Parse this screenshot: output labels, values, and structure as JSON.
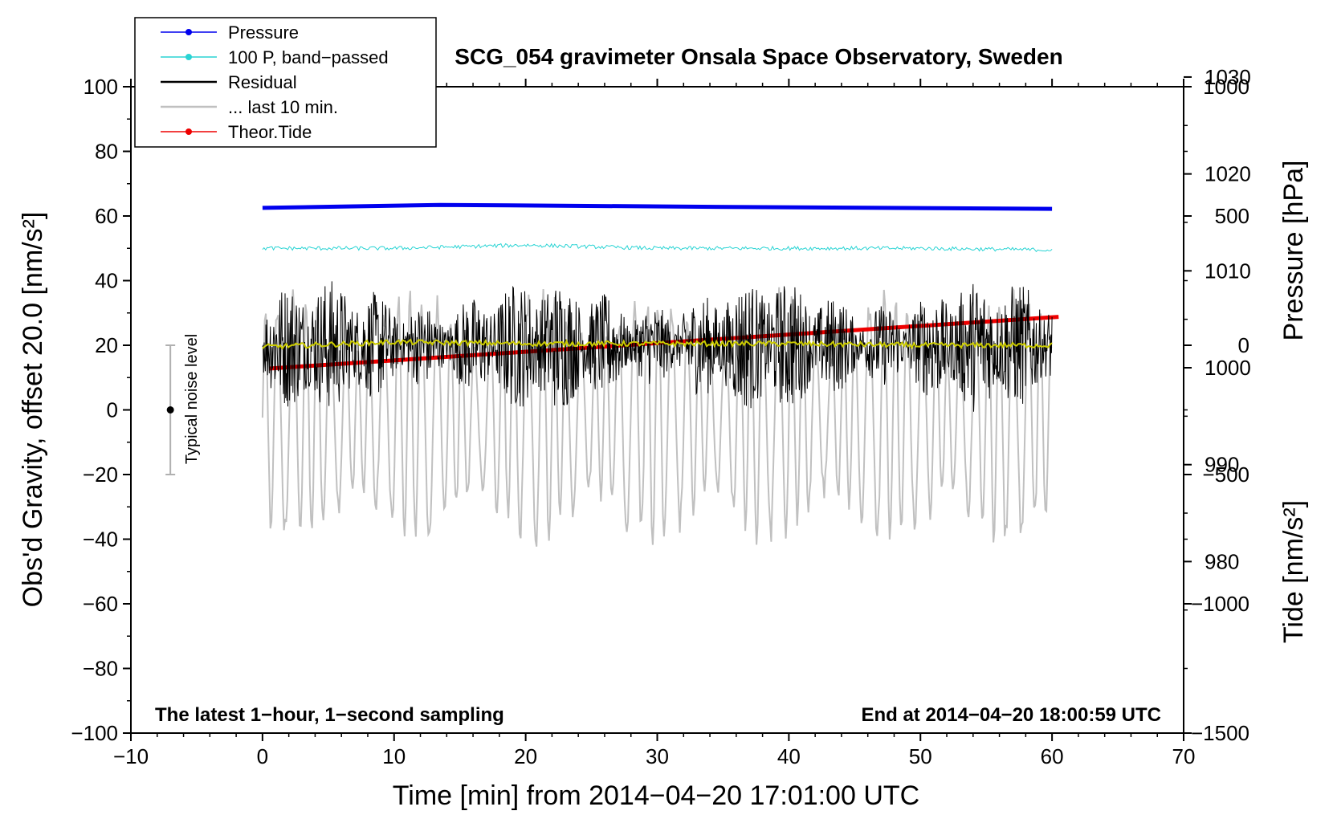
{
  "chart_data": {
    "type": "line",
    "title": "SCG_054 gravimeter Onsala Space Observatory, Sweden",
    "xlabel": "Time [min] from 2014−04−20 17:01:00 UTC",
    "ylabel_left": "Obs'd Gravity, offset 20.0 [nm/s²]",
    "ylabel_pressure": "Pressure [hPa]",
    "ylabel_tide": "Tide [nm/s²]",
    "xlim": [
      -10,
      70
    ],
    "ylim": [
      -100,
      100
    ],
    "pressure_lim": [
      962.3,
      1029.0
    ],
    "tide_lim": [
      -1500,
      1000
    ],
    "x_ticks": [
      "−10",
      "0",
      "10",
      "20",
      "30",
      "40",
      "50",
      "60",
      "70"
    ],
    "y_ticks": [
      "100",
      "80",
      "60",
      "40",
      "20",
      "0",
      "−20",
      "−40",
      "−60",
      "−80",
      "−100"
    ],
    "pressure_ticks": [
      "1030",
      "1020",
      "1010",
      "1000",
      "990",
      "980"
    ],
    "tide_ticks": [
      "1000",
      "500",
      "0",
      "−500",
      "−1000",
      "−1500"
    ],
    "legend": {
      "placement": "top-left",
      "entries": [
        {
          "label": "Pressure",
          "color": "#0000ee",
          "marker": true
        },
        {
          "label": "100 P, band−passed",
          "color": "#2ad4d4",
          "marker": true
        },
        {
          "label": "Residual",
          "color": "#000000",
          "marker": false
        },
        {
          "label": "... last 10 min.",
          "color": "#c0c0c0",
          "marker": false
        },
        {
          "label": "Theor.Tide",
          "color": "#ee0000",
          "marker": true
        }
      ]
    },
    "annotations": {
      "left": "The latest 1−hour, 1−second sampling",
      "right": "End at 2014−04−20 18:00:59 UTC",
      "noise_label": "Typical noise level"
    },
    "noise_bar": {
      "x": -7,
      "center": 0,
      "low": -20,
      "high": 20
    },
    "series": [
      {
        "name": "Pressure",
        "axis": "pressure",
        "color": "#0000ee",
        "x": [
          0,
          13.5,
          35.5,
          60
        ],
        "values": [
          1016.5,
          1016.8,
          1016.6,
          1016.4
        ]
      },
      {
        "name": "100 P, band-passed",
        "axis": "left",
        "color": "#2ad4d4",
        "x": [
          0,
          10,
          20,
          30,
          40,
          50,
          60
        ],
        "values": [
          50,
          50,
          51,
          50,
          50,
          50,
          49.5
        ]
      },
      {
        "name": "Residual",
        "axis": "left",
        "color": "#000000",
        "x": [
          0,
          60
        ],
        "values": [
          20,
          20
        ],
        "amplitude": 14
      },
      {
        "name": "Mean residual",
        "axis": "left",
        "color": "#cccc00",
        "x": [
          0,
          10,
          20,
          30,
          40,
          50,
          60
        ],
        "values": [
          19.5,
          21,
          20.5,
          20.5,
          20.5,
          20,
          20
        ]
      },
      {
        "name": "... last 10 min.",
        "axis": "tide",
        "color": "#c0c0c0",
        "x": [
          0,
          60
        ],
        "values": [
          -280,
          -280
        ],
        "amplitude": 520
      },
      {
        "name": "Theor.Tide",
        "axis": "tide",
        "color": "#ee0000",
        "x": [
          0.5,
          60.5
        ],
        "values": [
          -90,
          110
        ]
      }
    ]
  }
}
